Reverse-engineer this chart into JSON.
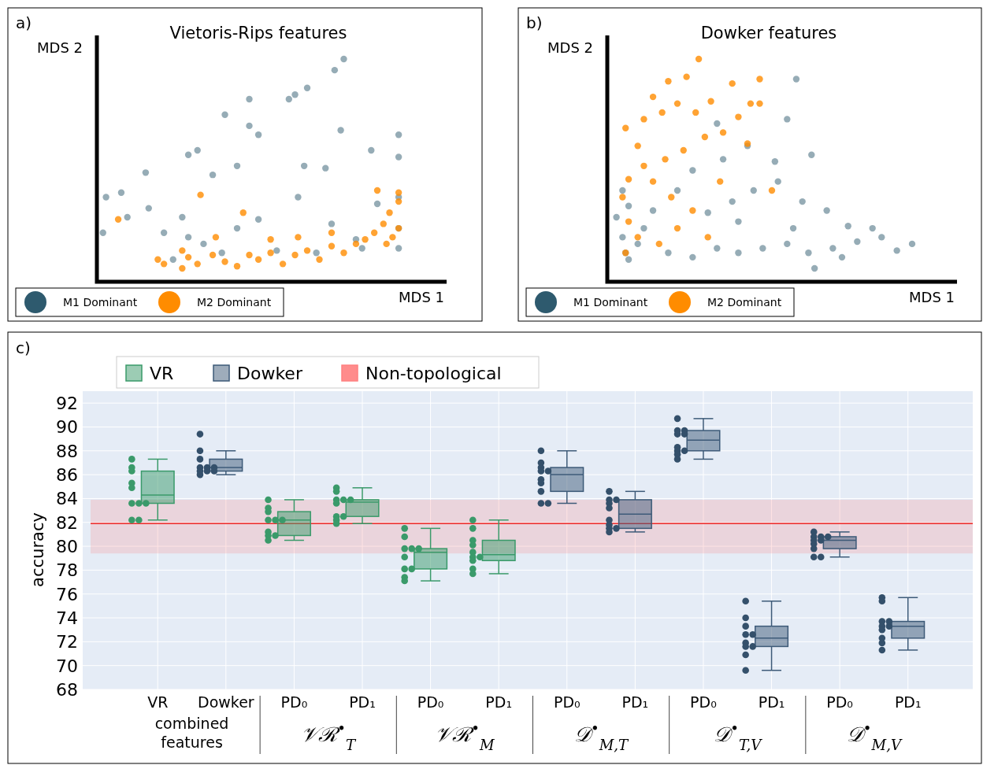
{
  "chart_data": [
    {
      "type": "other",
      "title": "Vietoris-Rips features",
      "xlabel": "MDS 1",
      "ylabel": "MDS 2",
      "legend": "bottom left",
      "annotations": [
        "a)"
      ],
      "series": [
        {
          "name": "M1 Dominant",
          "color": "#2e5a6e"
        },
        {
          "name": "M2 Dominant",
          "color": "#ff8c00"
        }
      ]
    },
    {
      "type": "other",
      "title": "Dowker features",
      "xlabel": "MDS 1",
      "ylabel": "MDS 2",
      "legend": "bottom left",
      "annotations": [
        "b)"
      ],
      "series": [
        {
          "name": "M1 Dominant",
          "color": "#2e5a6e"
        },
        {
          "name": "M2 Dominant",
          "color": "#ff8c00"
        }
      ]
    },
    {
      "type": "box",
      "ylabel": "accuracy",
      "categories": [
        "VR",
        "Dowker",
        "PD₀",
        "PD₁",
        "PD₀",
        "PD₁",
        "PD₀",
        "PD₁",
        "PD₀",
        "PD₁",
        "PD₀",
        "PD₁"
      ],
      "ylim": [
        68,
        93
      ],
      "yticks": [
        68,
        70,
        72,
        74,
        76,
        78,
        80,
        82,
        84,
        86,
        88,
        90,
        92
      ],
      "grid": true,
      "legend": "top left",
      "annotations": [
        "c)",
        "combined features",
        "𝒱ℛ$^{•}$$_{T}$",
        "𝒱ℛ$^{•}$$_{M}$",
        "𝒟$^{•}$$_{M,T}$",
        "𝒟$^{•}$$_{T,V}$",
        "𝒟$^{•}$$_{M,V}$"
      ],
      "bands": [
        {
          "axis": "y",
          "from": 79.4,
          "to": 83.9,
          "label": "Non-topological",
          "color": "#ff8080"
        }
      ],
      "ref_lines": [
        {
          "axis": "y",
          "value": 81.9,
          "color": "#ee2a2a"
        }
      ],
      "series": [
        {
          "name": "VR",
          "type": "box",
          "color": "#3a9a6a",
          "boxes": [
            {
              "low": 82.2,
              "q1": 83.6,
              "median": 84.3,
              "q3": 86.3,
              "high": 87.3
            },
            null,
            {
              "low": 80.5,
              "q1": 80.9,
              "median": 82.2,
              "q3": 82.9,
              "high": 83.9
            },
            {
              "low": 81.9,
              "q1": 82.5,
              "median": 83.7,
              "q3": 83.9,
              "high": 84.9
            },
            {
              "low": 77.1,
              "q1": 78.1,
              "median": 79.5,
              "q3": 79.8,
              "high": 81.5
            },
            {
              "low": 77.7,
              "q1": 78.8,
              "median": 79.3,
              "q3": 80.5,
              "high": 82.2
            },
            null,
            null,
            null,
            null,
            null,
            null
          ]
        },
        {
          "name": "Dowker",
          "type": "box",
          "color": "#3d5a78",
          "boxes": [
            null,
            {
              "low": 86.0,
              "q1": 86.3,
              "median": 86.6,
              "q3": 87.3,
              "high": 88.0
            },
            null,
            null,
            null,
            null,
            {
              "low": 83.6,
              "q1": 84.6,
              "median": 86.0,
              "q3": 86.6,
              "high": 88.0
            },
            {
              "low": 81.2,
              "q1": 81.5,
              "median": 82.7,
              "q3": 83.9,
              "high": 84.6
            },
            {
              "low": 87.3,
              "q1": 88.0,
              "median": 88.9,
              "q3": 89.7,
              "high": 90.7
            },
            {
              "low": 69.6,
              "q1": 71.6,
              "median": 72.3,
              "q3": 73.3,
              "high": 75.4
            },
            {
              "low": 79.1,
              "q1": 79.8,
              "median": 80.5,
              "q3": 80.8,
              "high": 81.2
            },
            {
              "low": 71.3,
              "q1": 72.3,
              "median": 73.3,
              "q3": 73.7,
              "high": 75.7
            }
          ]
        },
        {
          "type": "scatter",
          "colors": [
            "#3a9a6a",
            "#34506b",
            "#3a9a6a",
            "#3a9a6a",
            "#3a9a6a",
            "#3a9a6a",
            "#34506b",
            "#34506b",
            "#34506b",
            "#34506b",
            "#34506b",
            "#34506b"
          ],
          "values": [
            87.3,
            89.4,
            83.9,
            84.9,
            81.5,
            82.2,
            88.0,
            84.6,
            90.7,
            75.4,
            81.2,
            75.7
          ]
        },
        {
          "type": "scatter",
          "colors": [
            "#3a9a6a",
            "#34506b",
            "#3a9a6a",
            "#3a9a6a",
            "#3a9a6a",
            "#3a9a6a",
            "#34506b",
            "#34506b",
            "#34506b",
            "#34506b",
            "#34506b",
            "#34506b"
          ],
          "values": [
            86.6,
            88.0,
            83.2,
            84.6,
            80.8,
            81.5,
            87.0,
            83.9,
            89.7,
            74.0,
            80.8,
            75.4
          ]
        },
        {
          "type": "scatter",
          "colors": [
            "#3a9a6a",
            "#34506b",
            "#3a9a6a",
            "#3a9a6a",
            "#3a9a6a",
            "#3a9a6a",
            "#34506b",
            "#34506b",
            "#34506b",
            "#34506b",
            "#34506b",
            "#34506b"
          ],
          "values": [
            86.3,
            87.3,
            82.9,
            83.9,
            79.8,
            80.5,
            86.6,
            83.9,
            89.7,
            73.3,
            80.8,
            73.7
          ]
        },
        {
          "type": "scatter",
          "colors": [
            "#3a9a6a",
            "#34506b",
            "#3a9a6a",
            "#3a9a6a",
            "#3a9a6a",
            "#3a9a6a",
            "#34506b",
            "#34506b",
            "#34506b",
            "#34506b",
            "#34506b",
            "#34506b"
          ],
          "values": [
            85.3,
            86.6,
            82.2,
            83.9,
            79.8,
            80.1,
            86.3,
            83.6,
            89.4,
            72.6,
            80.8,
            73.7
          ]
        },
        {
          "type": "scatter",
          "colors": [
            "#3a9a6a",
            "#34506b",
            "#3a9a6a",
            "#3a9a6a",
            "#3a9a6a",
            "#3a9a6a",
            "#34506b",
            "#34506b",
            "#34506b",
            "#34506b",
            "#34506b",
            "#34506b"
          ],
          "values": [
            84.9,
            86.6,
            82.2,
            83.9,
            79.8,
            79.5,
            86.3,
            83.2,
            89.4,
            72.6,
            80.5,
            73.3
          ]
        },
        {
          "type": "scatter",
          "colors": [
            "#3a9a6a",
            "#34506b",
            "#3a9a6a",
            "#3a9a6a",
            "#3a9a6a",
            "#3a9a6a",
            "#34506b",
            "#34506b",
            "#34506b",
            "#34506b",
            "#34506b",
            "#34506b"
          ],
          "values": [
            83.6,
            86.6,
            82.2,
            83.6,
            79.1,
            79.1,
            85.6,
            82.2,
            88.3,
            71.9,
            80.5,
            73.3
          ]
        },
        {
          "type": "scatter",
          "colors": [
            "#3a9a6a",
            "#34506b",
            "#3a9a6a",
            "#3a9a6a",
            "#3a9a6a",
            "#3a9a6a",
            "#34506b",
            "#34506b",
            "#34506b",
            "#34506b",
            "#34506b",
            "#34506b"
          ],
          "values": [
            83.6,
            86.3,
            81.2,
            82.5,
            78.1,
            79.1,
            85.3,
            81.8,
            88.0,
            71.6,
            80.2,
            73.0
          ]
        },
        {
          "type": "scatter",
          "colors": [
            "#3a9a6a",
            "#34506b",
            "#3a9a6a",
            "#3a9a6a",
            "#3a9a6a",
            "#3a9a6a",
            "#34506b",
            "#34506b",
            "#34506b",
            "#34506b",
            "#34506b",
            "#34506b"
          ],
          "values": [
            83.6,
            86.3,
            80.9,
            82.5,
            78.1,
            78.8,
            84.6,
            81.5,
            88.0,
            71.6,
            79.8,
            72.3
          ]
        },
        {
          "type": "scatter",
          "colors": [
            "#3a9a6a",
            "#34506b",
            "#3a9a6a",
            "#3a9a6a",
            "#3a9a6a",
            "#3a9a6a",
            "#34506b",
            "#34506b",
            "#34506b",
            "#34506b",
            "#34506b",
            "#34506b"
          ],
          "values": [
            82.2,
            86.3,
            80.9,
            82.2,
            77.4,
            78.1,
            83.6,
            81.5,
            87.7,
            70.9,
            79.1,
            71.9
          ]
        },
        {
          "type": "scatter",
          "colors": [
            "#3a9a6a",
            "#34506b",
            "#3a9a6a",
            "#3a9a6a",
            "#3a9a6a",
            "#3a9a6a",
            "#34506b",
            "#34506b",
            "#34506b",
            "#34506b",
            "#34506b",
            "#34506b"
          ],
          "values": [
            82.2,
            86.0,
            80.5,
            81.9,
            77.1,
            77.7,
            83.6,
            81.2,
            87.3,
            69.6,
            79.1,
            71.3
          ]
        }
      ]
    }
  ]
}
